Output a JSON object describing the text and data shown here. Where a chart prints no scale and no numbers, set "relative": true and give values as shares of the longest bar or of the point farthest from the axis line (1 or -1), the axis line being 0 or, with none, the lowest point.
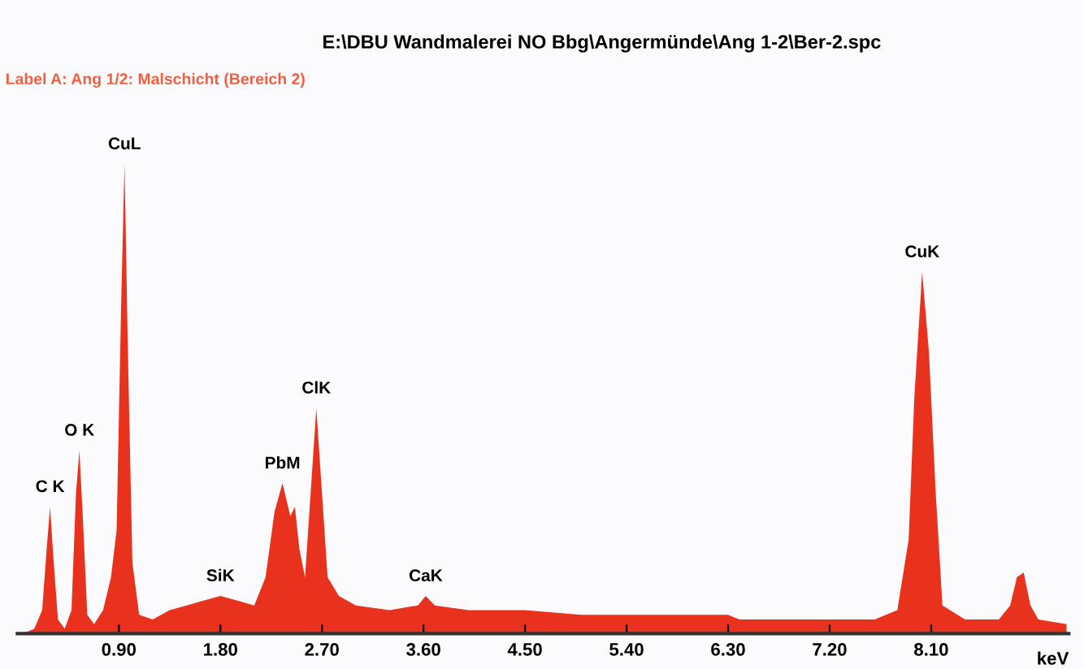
{
  "chart_data": {
    "type": "area",
    "title": "E:\\DBU Wandmalerei NO Bbg\\Angermünde\\Ang 1-2\\Ber-2.spc",
    "subtitle": "Label A: Ang 1/2: Malschicht (Bereich 2)",
    "xlabel": "keV",
    "relative": true,
    "xlim": [
      0,
      9.32
    ],
    "xticks": [
      {
        "value": 0.9,
        "label": "0.90"
      },
      {
        "value": 1.8,
        "label": "1.80"
      },
      {
        "value": 2.7,
        "label": "2.70"
      },
      {
        "value": 3.6,
        "label": "3.60"
      },
      {
        "value": 4.5,
        "label": "4.50"
      },
      {
        "value": 5.4,
        "label": "5.40"
      },
      {
        "value": 6.3,
        "label": "6.30"
      },
      {
        "value": 7.2,
        "label": "7.20"
      },
      {
        "value": 8.1,
        "label": "8.10"
      }
    ],
    "grid": false,
    "annotations": [
      {
        "text": "C K",
        "x": 0.29,
        "y": 0.27
      },
      {
        "text": "O K",
        "x": 0.55,
        "y": 0.39
      },
      {
        "text": "CuL",
        "x": 0.95,
        "y": 1.0
      },
      {
        "text": "SiK",
        "x": 1.8,
        "y": 0.08
      },
      {
        "text": "PbM",
        "x": 2.35,
        "y": 0.32
      },
      {
        "text": "ClK",
        "x": 2.65,
        "y": 0.48
      },
      {
        "text": "CaK",
        "x": 3.62,
        "y": 0.08
      },
      {
        "text": "CuK",
        "x": 8.02,
        "y": 0.77
      }
    ],
    "series": [
      {
        "color": "#e8321e",
        "x": [
          0.05,
          0.15,
          0.22,
          0.26,
          0.29,
          0.32,
          0.36,
          0.42,
          0.48,
          0.52,
          0.55,
          0.58,
          0.62,
          0.68,
          0.76,
          0.83,
          0.88,
          0.92,
          0.95,
          0.98,
          1.02,
          1.08,
          1.2,
          1.35,
          1.5,
          1.65,
          1.8,
          1.95,
          2.1,
          2.2,
          2.28,
          2.35,
          2.42,
          2.46,
          2.5,
          2.55,
          2.6,
          2.65,
          2.7,
          2.75,
          2.85,
          3.0,
          3.3,
          3.55,
          3.62,
          3.7,
          4.0,
          4.5,
          5.0,
          5.5,
          6.0,
          6.3,
          6.4,
          7.0,
          7.6,
          7.8,
          7.9,
          7.95,
          8.02,
          8.08,
          8.14,
          8.2,
          8.4,
          8.7,
          8.8,
          8.86,
          8.92,
          8.98,
          9.05,
          9.3
        ],
        "values": [
          0.0,
          0.01,
          0.05,
          0.18,
          0.27,
          0.16,
          0.03,
          0.01,
          0.05,
          0.3,
          0.39,
          0.25,
          0.04,
          0.02,
          0.05,
          0.12,
          0.22,
          0.7,
          1.0,
          0.6,
          0.15,
          0.04,
          0.03,
          0.05,
          0.06,
          0.07,
          0.08,
          0.07,
          0.06,
          0.12,
          0.26,
          0.32,
          0.25,
          0.27,
          0.18,
          0.12,
          0.3,
          0.48,
          0.3,
          0.12,
          0.08,
          0.06,
          0.05,
          0.06,
          0.08,
          0.06,
          0.05,
          0.05,
          0.04,
          0.04,
          0.04,
          0.04,
          0.03,
          0.03,
          0.03,
          0.05,
          0.2,
          0.5,
          0.77,
          0.6,
          0.3,
          0.06,
          0.03,
          0.03,
          0.06,
          0.12,
          0.13,
          0.06,
          0.03,
          0.02
        ]
      }
    ]
  }
}
